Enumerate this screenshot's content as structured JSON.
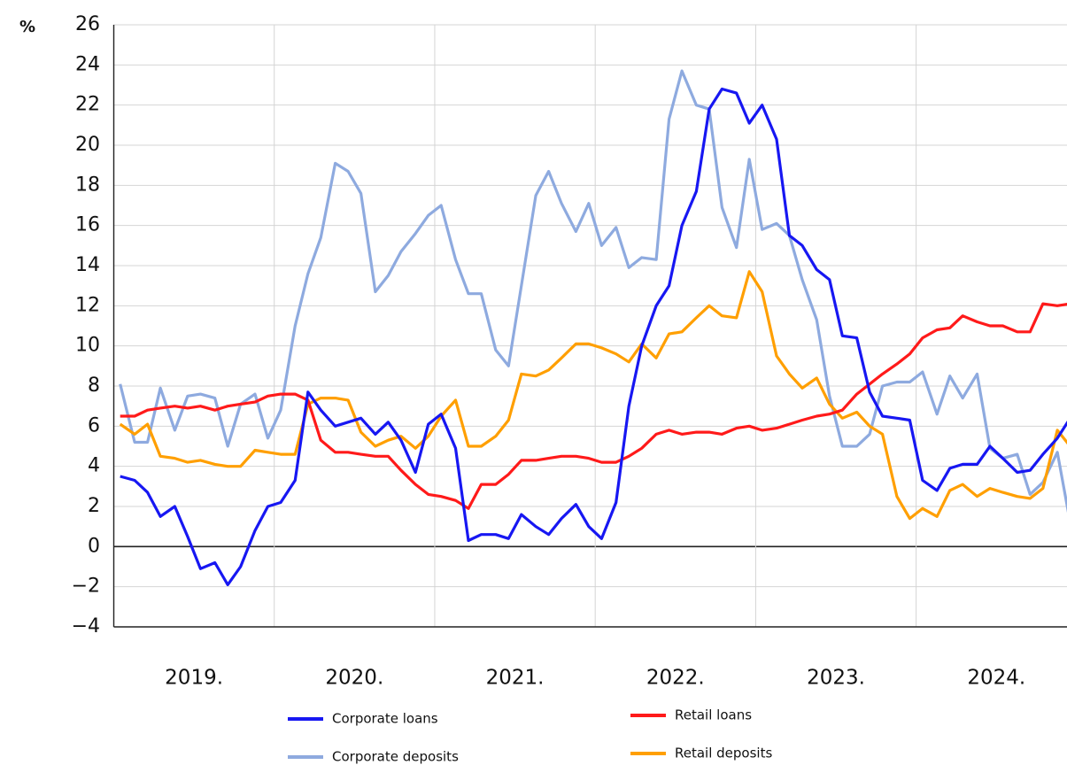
{
  "chart_data": {
    "type": "line",
    "y_unit": "%",
    "x": [
      2019.04,
      2019.13,
      2019.21,
      2019.29,
      2019.38,
      2019.46,
      2019.54,
      2019.63,
      2019.71,
      2019.79,
      2019.88,
      2019.96,
      2020.04,
      2020.13,
      2020.21,
      2020.29,
      2020.38,
      2020.46,
      2020.54,
      2020.63,
      2020.71,
      2020.79,
      2020.88,
      2020.96,
      2021.04,
      2021.13,
      2021.21,
      2021.29,
      2021.38,
      2021.46,
      2021.54,
      2021.63,
      2021.71,
      2021.79,
      2021.88,
      2021.96,
      2022.04,
      2022.13,
      2022.21,
      2022.29,
      2022.38,
      2022.46,
      2022.54,
      2022.63,
      2022.71,
      2022.79,
      2022.88,
      2022.96,
      2023.04,
      2023.13,
      2023.21,
      2023.29,
      2023.38,
      2023.46,
      2023.54,
      2023.63,
      2023.71,
      2023.79,
      2023.88,
      2023.96,
      2024.04,
      2024.13,
      2024.21,
      2024.29,
      2024.38,
      2024.46,
      2024.54,
      2024.63,
      2024.71,
      2024.79,
      2024.88,
      2024.96
    ],
    "series": [
      {
        "name": "Corporate deposits",
        "color": "#8eaadf",
        "values": [
          8.1,
          5.2,
          5.2,
          7.9,
          5.8,
          7.5,
          7.6,
          7.4,
          5.0,
          7.1,
          7.6,
          5.4,
          6.8,
          11.0,
          13.6,
          15.4,
          19.1,
          18.7,
          17.6,
          12.7,
          13.5,
          14.7,
          15.6,
          16.5,
          17.0,
          14.3,
          12.6,
          12.6,
          9.8,
          9.0,
          13.0,
          17.5,
          18.7,
          17.1,
          15.7,
          17.1,
          15.0,
          15.9,
          13.9,
          14.4,
          14.3,
          21.3,
          23.7,
          22.0,
          21.8,
          16.9,
          14.9,
          19.3,
          15.8,
          16.1,
          15.5,
          13.3,
          11.3,
          7.5,
          5.0,
          5.0,
          5.6,
          8.0,
          8.2,
          8.2,
          8.7,
          6.6,
          8.5,
          7.4,
          8.6,
          4.9,
          4.4,
          4.6,
          2.6,
          3.2,
          4.7,
          1.2
        ]
      },
      {
        "name": "Retail deposits",
        "color": "#ff9f00",
        "values": [
          6.1,
          5.6,
          6.1,
          4.5,
          4.4,
          4.2,
          4.3,
          4.1,
          4.0,
          4.0,
          4.8,
          4.7,
          4.6,
          4.6,
          7.1,
          7.4,
          7.4,
          7.3,
          5.7,
          5.0,
          5.3,
          5.5,
          4.9,
          5.5,
          6.5,
          7.3,
          5.0,
          5.0,
          5.5,
          6.3,
          8.6,
          8.5,
          8.8,
          9.4,
          10.1,
          10.1,
          9.9,
          9.6,
          9.2,
          10.1,
          9.4,
          10.6,
          10.7,
          11.4,
          12.0,
          11.5,
          11.4,
          13.7,
          12.7,
          9.5,
          8.6,
          7.9,
          8.4,
          7.1,
          6.4,
          6.7,
          6.0,
          5.6,
          2.5,
          1.4,
          1.9,
          1.5,
          2.8,
          3.1,
          2.5,
          2.9,
          2.7,
          2.5,
          2.4,
          2.9,
          5.8,
          5.0
        ]
      },
      {
        "name": "Retail loans",
        "color": "#ff1a1a",
        "values": [
          6.5,
          6.5,
          6.8,
          6.9,
          7.0,
          6.9,
          7.0,
          6.8,
          7.0,
          7.1,
          7.2,
          7.5,
          7.6,
          7.6,
          7.3,
          5.3,
          4.7,
          4.7,
          4.6,
          4.5,
          4.5,
          3.8,
          3.1,
          2.6,
          2.5,
          2.3,
          1.9,
          3.1,
          3.1,
          3.6,
          4.3,
          4.3,
          4.4,
          4.5,
          4.5,
          4.4,
          4.2,
          4.2,
          4.5,
          4.9,
          5.6,
          5.8,
          5.6,
          5.7,
          5.7,
          5.6,
          5.9,
          6.0,
          5.8,
          5.9,
          6.1,
          6.3,
          6.5,
          6.6,
          6.8,
          7.6,
          8.1,
          8.6,
          9.1,
          9.6,
          10.4,
          10.8,
          10.9,
          11.5,
          11.2,
          11.0,
          11.0,
          10.7,
          10.7,
          12.1,
          12.0,
          12.1
        ]
      },
      {
        "name": "Corporate loans",
        "color": "#1717f2",
        "values": [
          3.5,
          3.3,
          2.7,
          1.5,
          2.0,
          0.5,
          -1.1,
          -0.8,
          -1.9,
          -1.0,
          0.8,
          2.0,
          2.2,
          3.3,
          7.7,
          6.8,
          6.0,
          6.2,
          6.4,
          5.6,
          6.2,
          5.3,
          3.7,
          6.1,
          6.6,
          4.9,
          0.3,
          0.6,
          0.6,
          0.4,
          1.6,
          1.0,
          0.6,
          1.4,
          2.1,
          1.0,
          0.4,
          2.2,
          7.0,
          10.0,
          12.0,
          13.0,
          16.0,
          17.7,
          21.8,
          22.8,
          22.6,
          21.1,
          22.0,
          20.3,
          15.5,
          15.0,
          13.8,
          13.3,
          10.5,
          10.4,
          7.7,
          6.5,
          6.4,
          6.3,
          3.3,
          2.8,
          3.9,
          4.1,
          4.1,
          5.0,
          4.4,
          3.7,
          3.8,
          4.6,
          5.4,
          6.4
        ]
      }
    ],
    "legend_order": [
      3,
      0,
      2,
      1
    ],
    "xlim": [
      2019,
      2024.94
    ],
    "xticks": [
      2020,
      2021,
      2022,
      2023,
      2024
    ],
    "year_labels": [
      {
        "value": 2019.5,
        "label": "2019."
      },
      {
        "value": 2020.5,
        "label": "2020."
      },
      {
        "value": 2021.5,
        "label": "2021."
      },
      {
        "value": 2022.5,
        "label": "2022."
      },
      {
        "value": 2023.5,
        "label": "2023."
      },
      {
        "value": 2024.5,
        "label": "2024."
      }
    ],
    "ylim": [
      -4,
      26
    ],
    "yticks": [
      {
        "value": -4,
        "label": "−4"
      },
      {
        "value": -2,
        "label": "−2"
      },
      0,
      2,
      4,
      6,
      8,
      10,
      12,
      14,
      16,
      18,
      20,
      22,
      24,
      26
    ],
    "grid": true,
    "legend_position": "bottom"
  }
}
